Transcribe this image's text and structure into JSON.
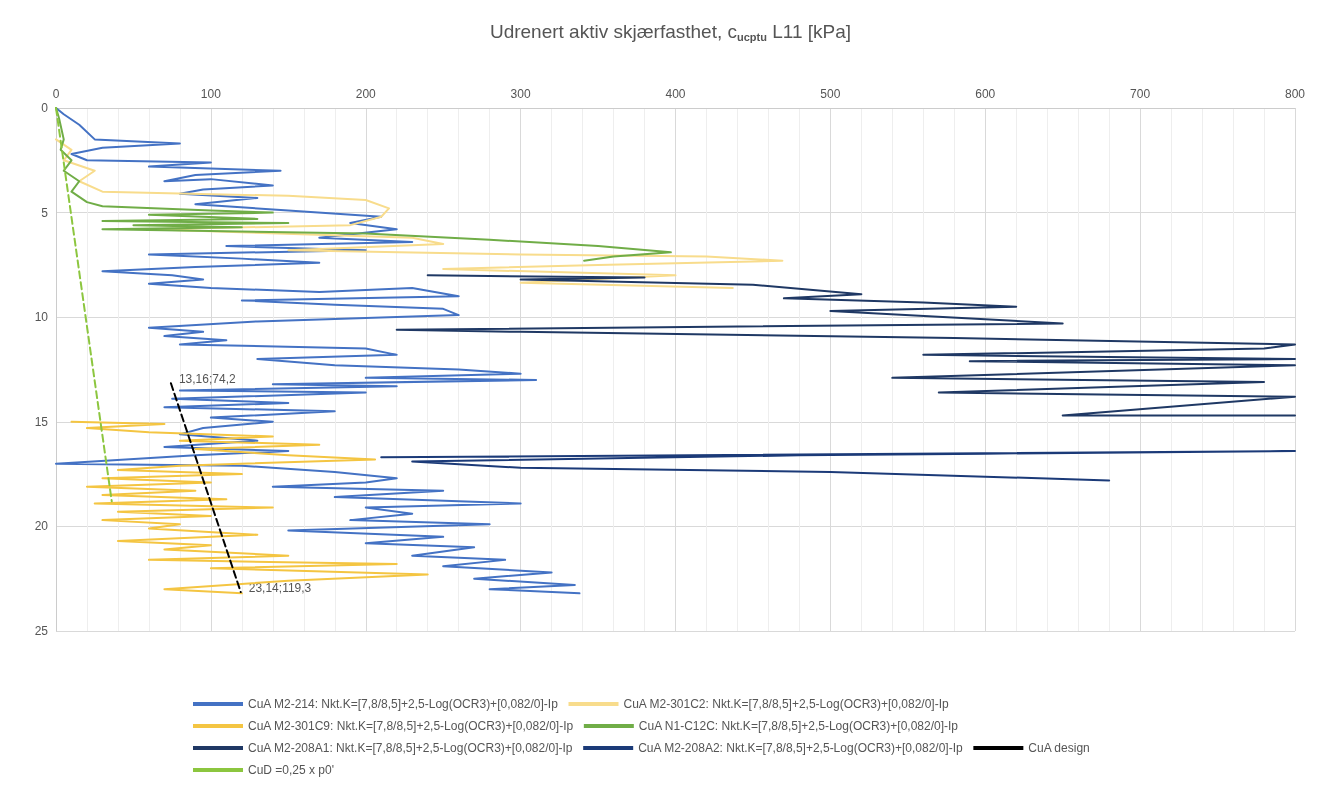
{
  "chart_data": {
    "type": "line",
    "title": "Udrenert aktiv skjærfasthet, c$_{ucptu}$ L11 [kPa]",
    "xlim": [
      0,
      800
    ],
    "xticks": [
      0,
      100,
      200,
      300,
      400,
      500,
      600,
      700,
      800
    ],
    "ylim": [
      25,
      0
    ],
    "yticks": [
      0,
      5,
      10,
      15,
      20,
      25
    ],
    "grid": true,
    "legend": "bottom",
    "marker": "none",
    "series": [
      {
        "name": "CuA M2-214: Nkt.K=[7,8/8,5]+2,5-Log(OCR3)+[0,082/0]-Ip",
        "color": "#4472c4",
        "x": [
          0,
          5,
          15,
          25,
          80,
          30,
          10,
          20,
          100,
          60,
          145,
          90,
          70,
          100,
          140,
          95,
          80,
          130,
          90,
          150,
          210,
          190,
          220,
          170,
          230,
          110,
          200,
          60,
          120,
          170,
          90,
          30,
          75,
          95,
          60,
          100,
          170,
          230,
          260,
          120,
          180,
          250,
          260,
          130,
          60,
          95,
          70,
          110,
          80,
          200,
          220,
          130,
          180,
          260,
          300,
          200,
          310,
          140,
          220,
          80,
          200,
          75,
          150,
          70,
          180,
          100,
          140,
          95,
          80,
          130,
          70,
          150,
          90,
          0,
          120,
          180,
          220,
          200,
          140,
          250,
          180,
          300,
          200,
          230,
          190,
          280,
          150,
          250,
          200,
          270,
          230,
          290,
          250,
          320,
          270,
          335,
          280,
          338
        ],
        "values": [
          0,
          0.3,
          0.8,
          1.5,
          1.7,
          1.9,
          2.2,
          2.5,
          2.6,
          2.8,
          3.0,
          3.2,
          3.5,
          3.4,
          3.7,
          3.9,
          4.1,
          4.3,
          4.6,
          4.9,
          5.2,
          5.5,
          5.8,
          6.2,
          6.4,
          6.6,
          6.8,
          7.0,
          7.2,
          7.4,
          7.6,
          7.8,
          8.0,
          8.2,
          8.4,
          8.6,
          8.8,
          8.6,
          9.0,
          9.2,
          9.4,
          9.6,
          9.9,
          10.2,
          10.5,
          10.7,
          10.9,
          11.1,
          11.3,
          11.5,
          11.8,
          12.0,
          12.3,
          12.5,
          12.7,
          12.9,
          13.0,
          13.2,
          13.3,
          13.5,
          13.6,
          13.9,
          14.1,
          14.3,
          14.5,
          14.8,
          15.0,
          15.3,
          15.6,
          15.9,
          16.2,
          16.4,
          16.6,
          17.0,
          17.1,
          17.4,
          17.7,
          17.9,
          18.1,
          18.3,
          18.6,
          18.9,
          19.1,
          19.4,
          19.7,
          19.9,
          20.2,
          20.5,
          20.8,
          21.0,
          21.4,
          21.6,
          21.9,
          22.2,
          22.5,
          22.8,
          23.0,
          23.2
        ]
      },
      {
        "name": "CuA M2-301C2: Nkt.K=[7,8/8,5]+2,5-Log(OCR3)+[0,082/0]-Ip",
        "color": "#f8dc8c",
        "x": [
          0,
          10,
          5,
          25,
          15,
          30,
          150,
          200,
          215,
          210,
          190,
          60,
          230,
          250,
          150,
          300,
          420,
          469,
          350,
          250,
          400,
          300,
          437
        ],
        "values": [
          1.5,
          2.0,
          2.5,
          3.0,
          3.5,
          4.0,
          4.2,
          4.4,
          4.8,
          5.2,
          5.6,
          5.8,
          6.2,
          6.5,
          6.8,
          7.0,
          7.1,
          7.3,
          7.5,
          7.7,
          8.0,
          8.35,
          8.6
        ]
      },
      {
        "name": "CuA M2-301C9: Nkt.K=[7,8/8,5]+2,5-Log(OCR3)+[0,082/0]-Ip",
        "color": "#f4c542",
        "x": [
          10,
          70,
          20,
          60,
          140,
          80,
          170,
          90,
          150,
          206,
          80,
          40,
          120,
          30,
          100,
          20,
          90,
          30,
          110,
          25,
          140,
          40,
          100,
          30,
          80,
          60,
          130,
          40,
          100,
          70,
          150,
          60,
          220,
          100,
          240,
          150,
          70,
          120
        ],
        "values": [
          15.0,
          15.1,
          15.3,
          15.5,
          15.7,
          15.9,
          16.1,
          16.3,
          16.6,
          16.8,
          17.1,
          17.3,
          17.5,
          17.7,
          17.9,
          18.1,
          18.3,
          18.5,
          18.7,
          18.9,
          19.1,
          19.3,
          19.5,
          19.7,
          19.9,
          20.1,
          20.4,
          20.7,
          20.9,
          21.1,
          21.4,
          21.6,
          21.8,
          22.0,
          22.3,
          22.6,
          23.0,
          23.2
        ]
      },
      {
        "name": "CuA N1-C12C: Nkt.K=[7,8/8,5]+2,5-Log(OCR3)+[0,082/0]-Ip",
        "color": "#70ad47",
        "x": [
          0,
          2,
          5,
          3,
          10,
          5,
          15,
          10,
          20,
          30,
          100,
          140,
          60,
          130,
          30,
          150,
          50,
          120,
          30,
          200,
          280,
          350,
          397,
          360,
          341
        ],
        "values": [
          0,
          0.5,
          1.5,
          2.0,
          2.5,
          3.0,
          3.5,
          4.0,
          4.5,
          4.7,
          4.9,
          5.0,
          5.1,
          5.3,
          5.4,
          5.5,
          5.6,
          5.7,
          5.8,
          6.0,
          6.3,
          6.6,
          6.9,
          7.1,
          7.3
        ]
      },
      {
        "name": "CuA M2-208A1: Nkt.K=[7,8/8,5]+2,5-Log(OCR3)+[0,082/0]-Ip",
        "color": "#1f3864",
        "x": [
          240,
          380,
          300,
          450,
          520,
          470,
          560,
          620,
          500,
          650,
          220,
          300,
          580,
          800,
          780,
          560,
          800,
          590,
          800,
          540,
          780,
          570,
          800,
          650,
          800
        ],
        "values": [
          8.0,
          8.1,
          8.2,
          8.45,
          8.9,
          9.1,
          9.3,
          9.5,
          9.7,
          10.3,
          10.6,
          10.7,
          11.0,
          11.3,
          11.5,
          11.8,
          12.0,
          12.1,
          12.3,
          12.9,
          13.1,
          13.6,
          13.8,
          14.7,
          14.7
        ]
      },
      {
        "name": "CuA M2-208A2: Nkt.K=[7,8/8,5]+2,5-Log(OCR3)+[0,082/0]-Ip",
        "color": "#1b3a78",
        "x": [
          210,
          800,
          480,
          230,
          300,
          500,
          680
        ],
        "values": [
          16.7,
          16.4,
          16.6,
          16.9,
          17.2,
          17.4,
          17.8
        ]
      },
      {
        "name": "CuA design",
        "color": "#000000",
        "line_style": "dashed",
        "x": [
          74.2,
          119.3
        ],
        "values": [
          13.16,
          23.14
        ]
      },
      {
        "name": "CuD =0,25 x p0'",
        "color": "#8cc63f",
        "line_style": "dashed",
        "x": [
          0,
          36
        ],
        "values": [
          0,
          18.8
        ]
      }
    ],
    "annotations": [
      {
        "text": "13,16;74,2",
        "x": 74.2,
        "y": 13.16
      },
      {
        "text": "23,14;119,3",
        "x": 119.3,
        "y": 23.14
      }
    ]
  }
}
